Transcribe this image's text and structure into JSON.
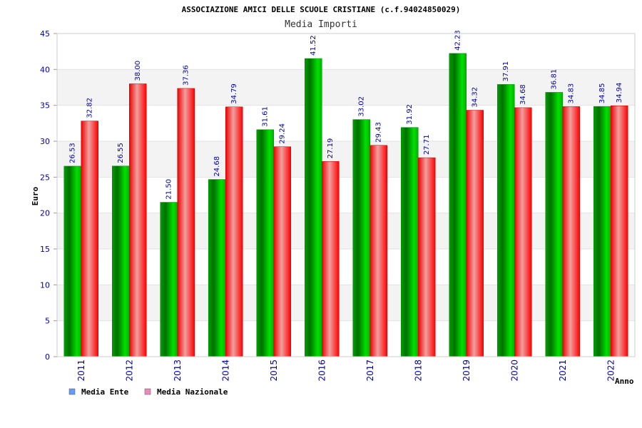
{
  "chart_data": {
    "type": "bar",
    "title": "ASSOCIAZIONE AMICI DELLE SCUOLE CRISTIANE (c.f.94024850029)",
    "subtitle": "Media Importi",
    "xlabel": "Anno",
    "ylabel": "Euro",
    "ylim": [
      0,
      45
    ],
    "yticks": [
      0,
      5,
      10,
      15,
      20,
      25,
      30,
      35,
      40,
      45
    ],
    "grid": true,
    "legend_position": "bottom-left",
    "categories": [
      "2011",
      "2012",
      "2013",
      "2014",
      "2015",
      "2016",
      "2017",
      "2018",
      "2019",
      "2020",
      "2021",
      "2022"
    ],
    "series": [
      {
        "name": "Media Ente",
        "color": "#00cc00",
        "legend_color": "#6699ff",
        "values": [
          26.53,
          26.55,
          21.5,
          24.68,
          31.61,
          41.52,
          33.02,
          31.92,
          42.23,
          37.91,
          36.81,
          34.85
        ],
        "labels": [
          "26.53",
          "26.55",
          "21.50",
          "24.68",
          "31.61",
          "41.52",
          "33.02",
          "31.92",
          "42.23",
          "37.91",
          "36.81",
          "34.85"
        ]
      },
      {
        "name": "Media Nazionale",
        "color": "#ff0000",
        "legend_color": "#ee88bb",
        "values": [
          32.82,
          38.0,
          37.36,
          34.79,
          29.24,
          27.19,
          29.43,
          27.71,
          34.32,
          34.68,
          34.83,
          34.94
        ],
        "labels": [
          "32.82",
          "38.00",
          "37.36",
          "34.79",
          "29.24",
          "27.19",
          "29.43",
          "27.71",
          "34.32",
          "34.68",
          "34.83",
          "34.94"
        ]
      }
    ]
  }
}
